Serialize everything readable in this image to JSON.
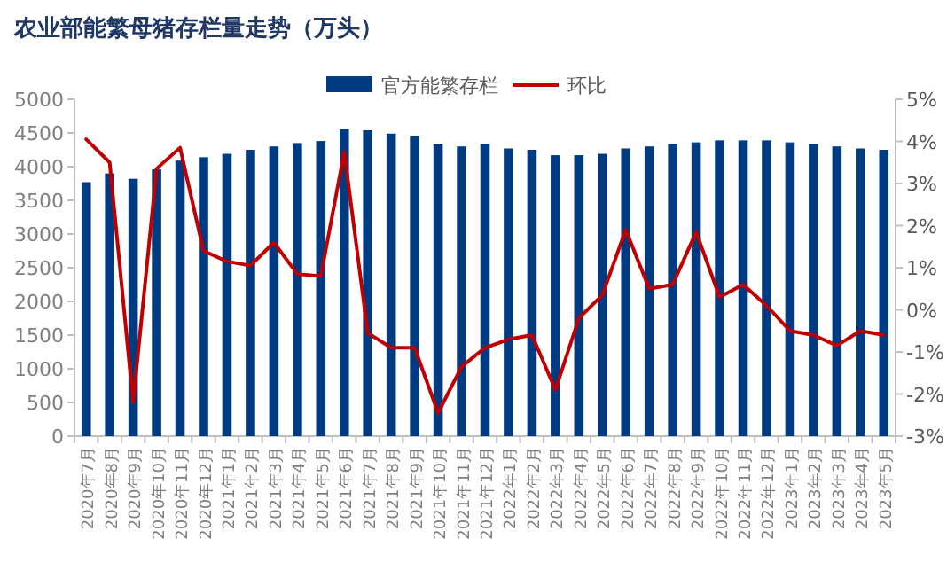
{
  "chart_data": {
    "type": "bar",
    "title": "农业部能繁母猪存栏量走势（万头）",
    "categories": [
      "2020年7月",
      "2020年8月",
      "2020年9月",
      "2020年10月",
      "2020年11月",
      "2020年12月",
      "2021年1月",
      "2021年2月",
      "2021年3月",
      "2021年4月",
      "2021年5月",
      "2021年6月",
      "2021年7月",
      "2021年8月",
      "2021年9月",
      "2021年10月",
      "2021年11月",
      "2021年12月",
      "2022年1月",
      "2022年2月",
      "2022年3月",
      "2022年4月",
      "2022年5月",
      "2022年6月",
      "2022年7月",
      "2022年8月",
      "2022年9月",
      "2022年10月",
      "2022年11月",
      "2022年12月",
      "2023年1月",
      "2023年2月",
      "2023年3月",
      "2023年4月",
      "2023年5月"
    ],
    "series": [
      {
        "name": "官方能繁存栏",
        "color": "#003a80",
        "values": [
          3770,
          3900,
          3820,
          3960,
          4090,
          4140,
          4190,
          4250,
          4300,
          4350,
          4380,
          4560,
          4540,
          4490,
          4460,
          4330,
          4300,
          4340,
          4270,
          4250,
          4170,
          4170,
          4190,
          4270,
          4300,
          4340,
          4360,
          4390,
          4390,
          4390,
          4360,
          4340,
          4300,
          4270,
          4250
        ]
      },
      {
        "name": "环比",
        "type": "line",
        "axis": "y2",
        "color": "#c00000",
        "values": [
          4.05,
          3.5,
          -2.2,
          3.35,
          3.85,
          1.4,
          1.15,
          1.05,
          1.6,
          0.85,
          0.8,
          3.75,
          -0.55,
          -0.9,
          -0.9,
          -2.45,
          -1.35,
          -0.9,
          -0.7,
          -0.6,
          -1.9,
          -0.2,
          0.35,
          1.9,
          0.5,
          0.6,
          1.85,
          0.3,
          0.6,
          0.1,
          -0.5,
          -0.6,
          -0.85,
          -0.5,
          -0.6
        ]
      }
    ],
    "ylim": [
      0,
      5000
    ],
    "yticks": [
      0,
      500,
      1000,
      1500,
      2000,
      2500,
      3000,
      3500,
      4000,
      4500,
      5000
    ],
    "y2lim": [
      -3,
      5
    ],
    "y2ticks": [
      {
        "value": -3,
        "label": "-3%"
      },
      {
        "value": -2,
        "label": "-2%"
      },
      {
        "value": -1,
        "label": "-1%"
      },
      {
        "value": 0,
        "label": "0%"
      },
      {
        "value": 1,
        "label": "1%"
      },
      {
        "value": 2,
        "label": "2%"
      },
      {
        "value": 3,
        "label": "3%"
      },
      {
        "value": 4,
        "label": "4%"
      },
      {
        "value": 5,
        "label": "5%"
      }
    ],
    "legend": "top",
    "grid": false
  }
}
